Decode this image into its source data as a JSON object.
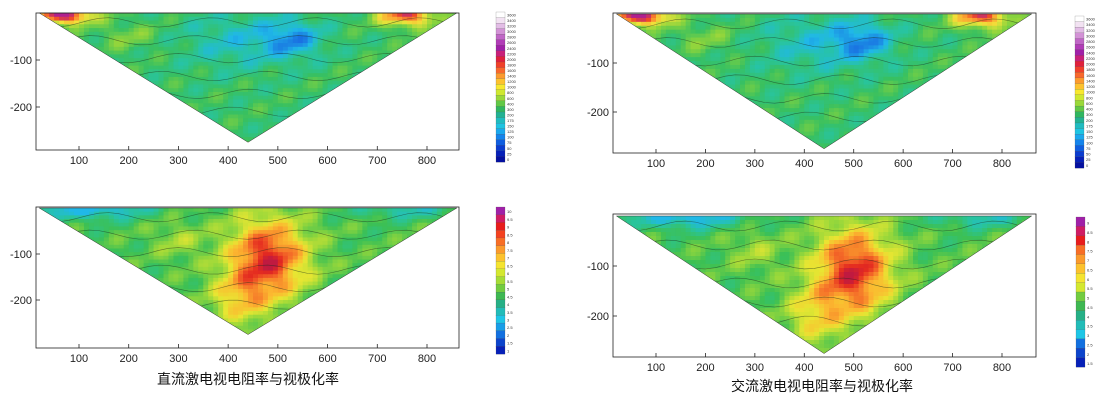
{
  "captions": {
    "left": "直流激电视电阻率与视极化率",
    "right": "交流激电视电阻率与视极化率"
  },
  "chart_data": [
    {
      "id": "dc-resistivity",
      "type": "heatmap",
      "xlabel": "",
      "ylabel": "",
      "xlim": [
        20,
        860
      ],
      "ylim": [
        -285,
        0
      ],
      "xticks": [
        "100",
        "200",
        "300",
        "400",
        "500",
        "600",
        "700",
        "800"
      ],
      "yticks": [
        "-100",
        "-200"
      ],
      "colorbar": [
        "3600",
        "3400",
        "3200",
        "3000",
        "2800",
        "2600",
        "2400",
        "2200",
        "2000",
        "1800",
        "1600",
        "1400",
        "1200",
        "1000",
        "800",
        "600",
        "400",
        "300",
        "200",
        "175",
        "150",
        "125",
        "100",
        "75",
        "50",
        "25",
        "0"
      ],
      "highs": [
        [
          80,
          -10
        ],
        [
          750,
          -10
        ]
      ],
      "lows": [
        [
          530,
          -60
        ]
      ]
    },
    {
      "id": "ac-resistivity",
      "type": "heatmap",
      "xlabel": "",
      "ylabel": "",
      "xlim": [
        20,
        860
      ],
      "ylim": [
        -285,
        0
      ],
      "xticks": [
        "100",
        "200",
        "300",
        "400",
        "500",
        "600",
        "700",
        "800"
      ],
      "yticks": [
        "-100",
        "-200"
      ],
      "colorbar": [
        "3600",
        "3400",
        "3200",
        "3000",
        "2800",
        "2600",
        "2400",
        "2200",
        "2000",
        "1800",
        "1600",
        "1400",
        "1200",
        "1000",
        "800",
        "600",
        "400",
        "300",
        "200",
        "175",
        "150",
        "125",
        "100",
        "75",
        "50",
        "25",
        "0"
      ],
      "highs": [
        [
          80,
          -10
        ],
        [
          750,
          -10
        ]
      ],
      "lows": [
        [
          520,
          -60
        ]
      ]
    },
    {
      "id": "dc-chargeability",
      "type": "heatmap",
      "xlabel": "",
      "ylabel": "",
      "xlim": [
        20,
        860
      ],
      "ylim": [
        -285,
        0
      ],
      "xticks": [
        "100",
        "200",
        "300",
        "400",
        "500",
        "600",
        "700",
        "800"
      ],
      "yticks": [
        "-100",
        "-200"
      ],
      "colorbar": [
        "10",
        "9.5",
        "9",
        "8.5",
        "8",
        "7.5",
        "7",
        "6.5",
        "6",
        "5.5",
        "5",
        "4.5",
        "4",
        "3.5",
        "3",
        "2.5",
        "2",
        "1.5",
        "1"
      ],
      "highs": [
        [
          490,
          -110
        ]
      ],
      "lows": [
        [
          120,
          -10
        ]
      ]
    },
    {
      "id": "ac-chargeability",
      "type": "heatmap",
      "xlabel": "",
      "ylabel": "",
      "xlim": [
        20,
        860
      ],
      "ylim": [
        -285,
        0
      ],
      "xticks": [
        "100",
        "200",
        "300",
        "400",
        "500",
        "600",
        "700",
        "800"
      ],
      "yticks": [
        "-100",
        "-200"
      ],
      "colorbar": [
        "9",
        "8.5",
        "8",
        "7.5",
        "7",
        "6.5",
        "6",
        "5.5",
        "5",
        "4.5",
        "4",
        "3.5",
        "3",
        "2.5",
        "2",
        "1.5"
      ],
      "highs": [
        [
          500,
          -120
        ]
      ],
      "lows": [
        [
          160,
          -20
        ]
      ]
    }
  ]
}
